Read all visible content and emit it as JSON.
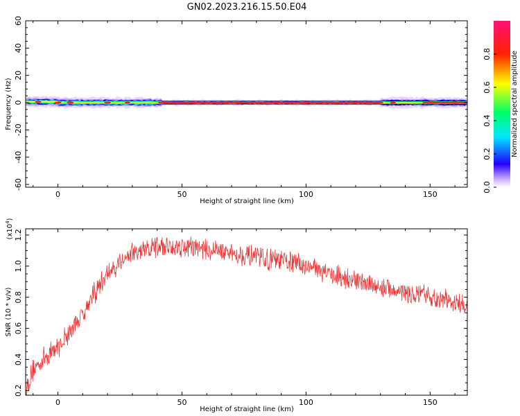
{
  "title": "GN02.2023.216.15.50.E04",
  "chart_data": [
    {
      "type": "heatmap",
      "xlabel": "Height of straight line (km)",
      "ylabel": "Frequency (Hz)",
      "xlim": [
        -13,
        165
      ],
      "ylim": [
        -62,
        60
      ],
      "xticks": [
        0,
        50,
        100,
        150
      ],
      "yticks": [
        -60,
        -40,
        -20,
        0,
        20,
        40,
        60
      ],
      "grid": false,
      "band_center_hz": 0,
      "band_notes": "signal concentrated in a narrow band around 0 Hz over full height range",
      "colorbar": {
        "label": "Normalized spectral amplitude",
        "range": [
          0.0,
          1.0
        ],
        "ticks": [
          "0.0",
          "0.2",
          "0.4",
          "0.6",
          "0.8"
        ],
        "colormap": [
          "#ffffff",
          "#b388ff",
          "#2200ff",
          "#00e5ff",
          "#00ff66",
          "#ffff00",
          "#ff2200",
          "#ff1177"
        ]
      },
      "peak_regions_km": [
        -8,
        0,
        5,
        20,
        28,
        42,
        55,
        68,
        72,
        88,
        100,
        120,
        135,
        150,
        160
      ]
    },
    {
      "type": "line",
      "xlabel": "Height of straight line (km)",
      "ylabel": "SNR (10 * v/v)",
      "y_scale_label": "(x10",
      "y_scale_exp": "4",
      "xlim": [
        -13,
        165
      ],
      "ylim": [
        0.17,
        1.24
      ],
      "xticks": [
        0,
        50,
        100,
        150
      ],
      "yticks": [
        0.2,
        0.4,
        0.6,
        0.8,
        1.0,
        1.2
      ],
      "ytick_labels": [
        "0.2",
        "0.4",
        "0.6",
        "0.8",
        "1.0",
        "1.2"
      ],
      "grid": false,
      "color": "#ee3333",
      "trend": {
        "x": [
          -13,
          -10,
          -5,
          0,
          5,
          10,
          15,
          20,
          25,
          30,
          35,
          40,
          45,
          50,
          55,
          60,
          65,
          70,
          75,
          80,
          85,
          90,
          95,
          100,
          105,
          110,
          115,
          120,
          125,
          130,
          135,
          140,
          145,
          150,
          155,
          160,
          165
        ],
        "y": [
          0.2,
          0.33,
          0.42,
          0.48,
          0.58,
          0.7,
          0.83,
          0.95,
          1.03,
          1.08,
          1.1,
          1.12,
          1.13,
          1.13,
          1.12,
          1.11,
          1.1,
          1.08,
          1.07,
          1.05,
          1.04,
          1.03,
          1.02,
          1.0,
          0.98,
          0.95,
          0.93,
          0.9,
          0.88,
          0.86,
          0.85,
          0.83,
          0.81,
          0.8,
          0.78,
          0.76,
          0.74
        ]
      },
      "noise_amplitude": 0.06,
      "x_points": 1000
    }
  ]
}
